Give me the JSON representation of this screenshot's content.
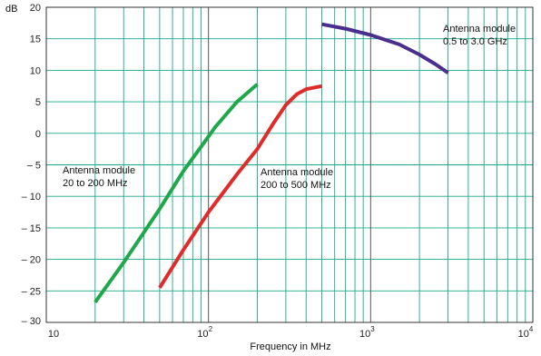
{
  "chart_data": {
    "type": "line",
    "x_scale": "log",
    "xlabel": "Frequency in MHz",
    "ylabel": "dB",
    "xlim": [
      10,
      10000
    ],
    "ylim": [
      -30,
      20
    ],
    "grid": true,
    "x_tick_labels": [
      {
        "base": "10",
        "exp": ""
      },
      {
        "base": "10",
        "exp": "2"
      },
      {
        "base": "10",
        "exp": "3"
      },
      {
        "base": "10",
        "exp": "4"
      }
    ],
    "y_tick_labels": [
      "20",
      "15",
      "10",
      "5",
      "0",
      "– 5",
      "– 10",
      "– 15",
      "– 20",
      "– 25",
      "– 30"
    ],
    "grid_color": "#1aa88a",
    "decade_line_color": "#555555",
    "series": [
      {
        "color": "#1fa84a",
        "points": [
          [
            20,
            -26.8
          ],
          [
            30,
            -20.5
          ],
          [
            50,
            -12
          ],
          [
            70,
            -6
          ],
          [
            100,
            -0.5
          ],
          [
            110,
            1
          ],
          [
            150,
            5
          ],
          [
            200,
            7.8
          ]
        ]
      },
      {
        "color": "#e02b2b",
        "points": [
          [
            50,
            -24.5
          ],
          [
            70,
            -18.5
          ],
          [
            100,
            -12.5
          ],
          [
            150,
            -6.5
          ],
          [
            200,
            -2.5
          ],
          [
            250,
            1.5
          ],
          [
            300,
            4.5
          ],
          [
            350,
            6.2
          ],
          [
            400,
            7
          ],
          [
            500,
            7.5
          ]
        ]
      },
      {
        "color": "#4a2d8c",
        "points": [
          [
            500,
            17.3
          ],
          [
            700,
            16.6
          ],
          [
            1000,
            15.6
          ],
          [
            1500,
            14.1
          ],
          [
            2000,
            12.5
          ],
          [
            2500,
            11
          ],
          [
            3000,
            9.6
          ]
        ]
      }
    ],
    "annotations": [
      {
        "lines": [
          "Antenna module",
          "20 to 200 MHz"
        ]
      },
      {
        "lines": [
          "Antenna module",
          "200 to 500 MHz"
        ]
      },
      {
        "lines": [
          "Antenna module",
          "0.5 to 3.0 GHz"
        ]
      }
    ]
  }
}
